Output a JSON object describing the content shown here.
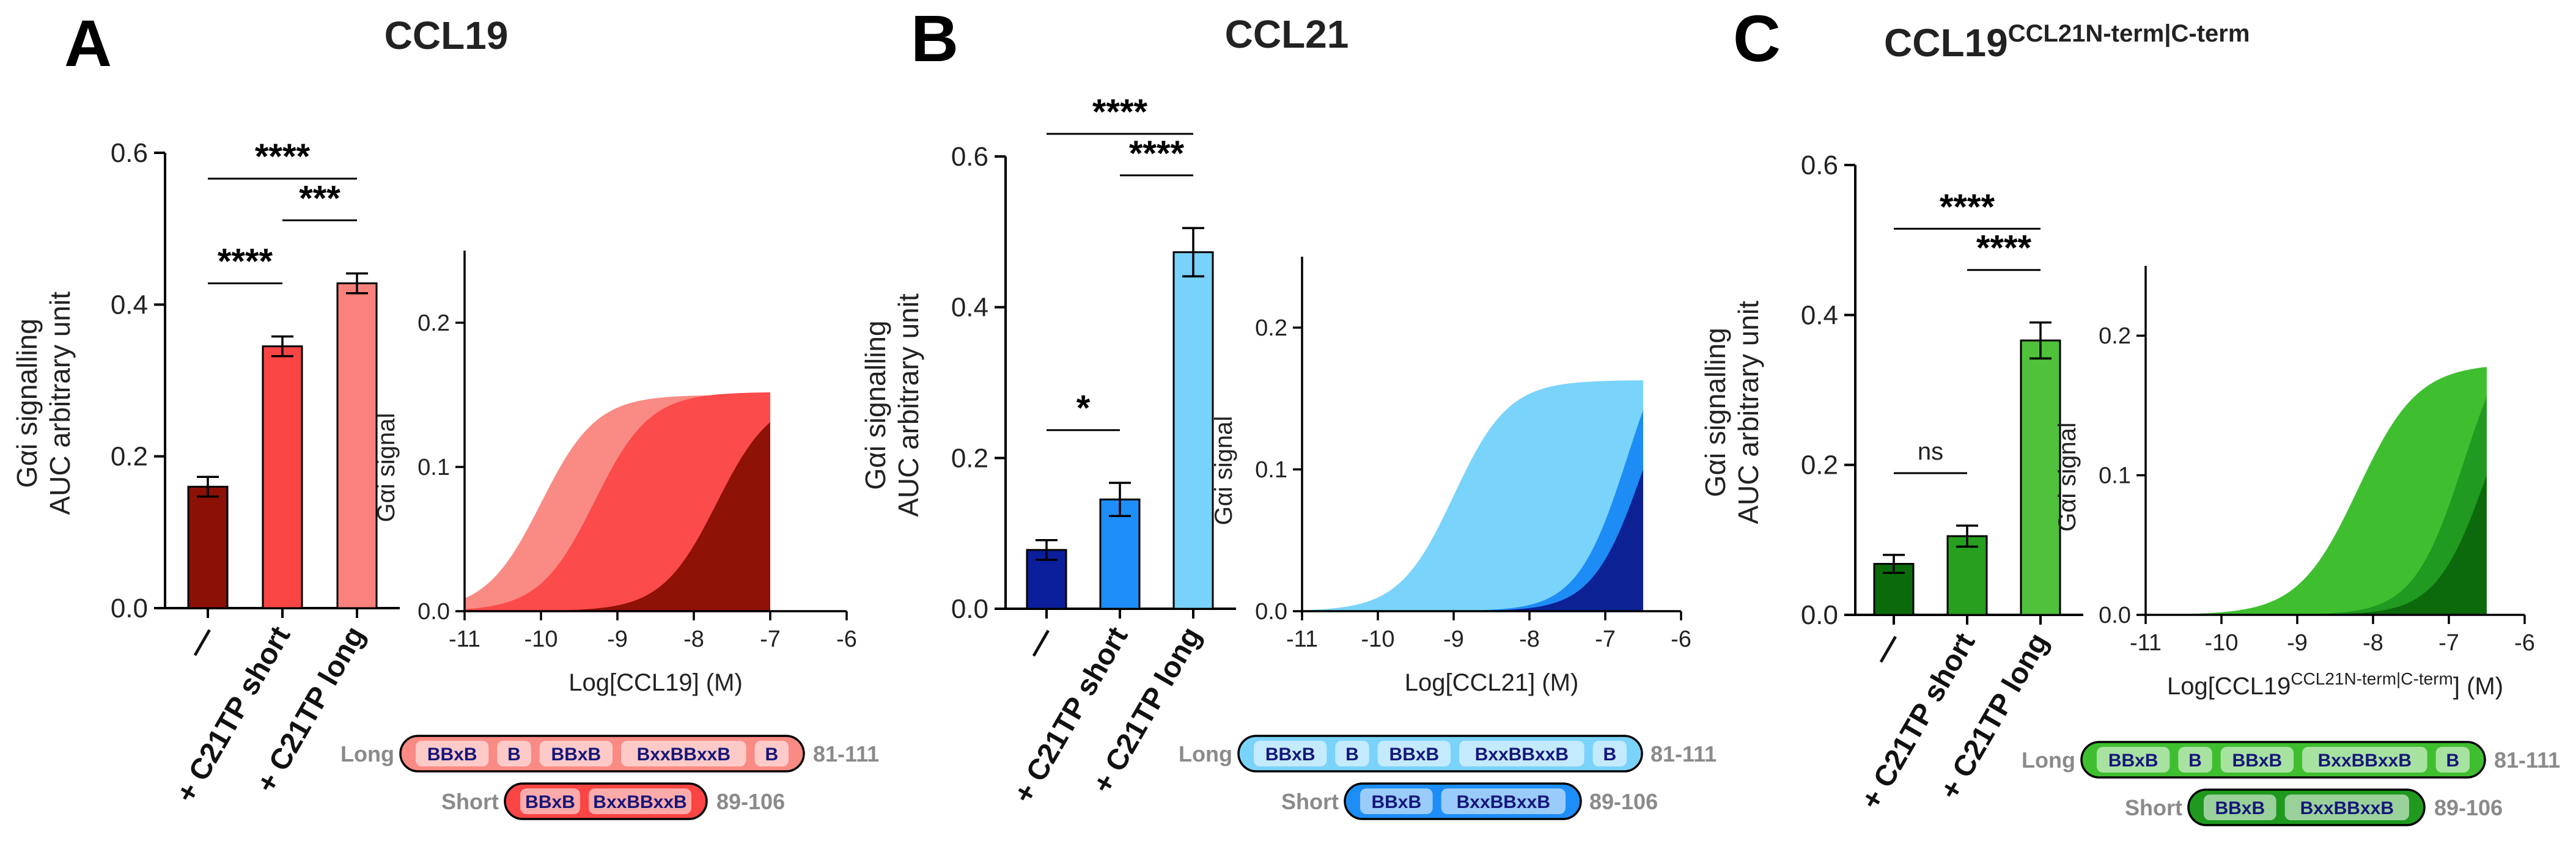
{
  "chart_data": [
    {
      "panel": "A",
      "title": "CCL19",
      "bar_chart": {
        "type": "bar",
        "ylabel_line1": "Gαi signalling",
        "ylabel_line2": "AUC arbitrary unit",
        "ylim": [
          0,
          0.6
        ],
        "yticks": [
          "0.0",
          "0.2",
          "0.4",
          "0.6"
        ],
        "categories": [
          "—",
          "+ C21TP short",
          "+ C21TP long"
        ],
        "values": [
          0.16,
          0.345,
          0.428
        ],
        "errors": [
          0.013,
          0.013,
          0.013
        ],
        "colors": [
          "#8b1106",
          "#fa4545",
          "#fb817c"
        ],
        "comparisons": [
          {
            "from": 0,
            "to": 1,
            "label": "****"
          },
          {
            "from": 1,
            "to": 2,
            "label": "***"
          },
          {
            "from": 0,
            "to": 2,
            "label": "****"
          }
        ]
      },
      "curve_chart": {
        "type": "area",
        "xlabel": "Log[CCL19] (M)",
        "ylabel": "Gαi signal",
        "xlim": [
          -11,
          -6
        ],
        "ylim": [
          0,
          0.25
        ],
        "xticks": [
          "-11",
          "-10",
          "-9",
          "-8",
          "-7",
          "-6"
        ],
        "yticks": [
          "0.0",
          "0.1",
          "0.2"
        ],
        "x_end": -7,
        "series": [
          {
            "name": "+ C21TP long",
            "top": 0.15,
            "ec50": -10.0,
            "hill": 1.2,
            "color": "#fa8a84"
          },
          {
            "name": "+ C21TP short",
            "top": 0.152,
            "ec50": -9.3,
            "hill": 1.2,
            "color": "#fb4b4b"
          },
          {
            "name": "—",
            "top": 0.15,
            "ec50": -7.7,
            "hill": 1.2,
            "color": "#8e1206"
          }
        ]
      },
      "peptides": [
        {
          "name": "Long",
          "range": "81-111",
          "color": "#fa8a84",
          "segments": [
            "BBxB",
            "B",
            "BBxB",
            "BxxBBxxB",
            "B"
          ]
        },
        {
          "name": "Short",
          "range": "89-106",
          "color": "#fb4444",
          "segments": [
            "BBxB",
            "BxxBBxxB"
          ]
        }
      ]
    },
    {
      "panel": "B",
      "title": "CCL21",
      "bar_chart": {
        "type": "bar",
        "ylabel_line1": "Gαi signalling",
        "ylabel_line2": "AUC arbitrary unit",
        "ylim": [
          0,
          0.6
        ],
        "yticks": [
          "0.0",
          "0.2",
          "0.4",
          "0.6"
        ],
        "categories": [
          "—",
          "+ C21TP short",
          "+ C21TP long"
        ],
        "values": [
          0.078,
          0.145,
          0.473
        ],
        "errors": [
          0.013,
          0.022,
          0.032
        ],
        "colors": [
          "#0b1f9c",
          "#1d8ef7",
          "#78d2fb"
        ],
        "comparisons": [
          {
            "from": 0,
            "to": 1,
            "label": "*"
          },
          {
            "from": 1,
            "to": 2,
            "label": "****"
          },
          {
            "from": 0,
            "to": 2,
            "label": "****"
          }
        ]
      },
      "curve_chart": {
        "type": "area",
        "xlabel": "Log[CCL21] (M)",
        "ylabel": "Gαi signal",
        "xlim": [
          -11,
          -6
        ],
        "ylim": [
          0,
          0.25
        ],
        "xticks": [
          "-11",
          "-10",
          "-9",
          "-8",
          "-7",
          "-6"
        ],
        "yticks": [
          "0.0",
          "0.1",
          "0.2"
        ],
        "x_end": -6.5,
        "series": [
          {
            "name": "+ C21TP long",
            "top": 0.163,
            "ec50": -9.0,
            "hill": 1.2,
            "color": "#7ad3fb"
          },
          {
            "name": "+ C21TP short",
            "top": 0.22,
            "ec50": -6.7,
            "hill": 1.3,
            "color": "#1d8cf5"
          },
          {
            "name": "—",
            "top": 0.2,
            "ec50": -6.5,
            "hill": 1.3,
            "color": "#0c2194"
          }
        ]
      },
      "peptides": [
        {
          "name": "Long",
          "range": "81-111",
          "color": "#7ad3fb",
          "segments": [
            "BBxB",
            "B",
            "BBxB",
            "BxxBBxxB",
            "B"
          ]
        },
        {
          "name": "Short",
          "range": "89-106",
          "color": "#1d8ef7",
          "segments": [
            "BBxB",
            "BxxBBxxB"
          ]
        }
      ]
    },
    {
      "panel": "C",
      "title": "CCL19",
      "title_superscript": "CCL21N-term|C-term",
      "bar_chart": {
        "type": "bar",
        "ylabel_line1": "Gαi signalling",
        "ylabel_line2": "AUC arbitrary unit",
        "ylim": [
          0,
          0.6
        ],
        "yticks": [
          "0.0",
          "0.2",
          "0.4",
          "0.6"
        ],
        "categories": [
          "—",
          "+ C21TP short",
          "+ C21TP long"
        ],
        "values": [
          0.068,
          0.105,
          0.366
        ],
        "errors": [
          0.012,
          0.014,
          0.024
        ],
        "colors": [
          "#0b6b0b",
          "#279f1f",
          "#4fc13a"
        ],
        "comparisons": [
          {
            "from": 0,
            "to": 1,
            "label": "ns"
          },
          {
            "from": 1,
            "to": 2,
            "label": "****"
          },
          {
            "from": 0,
            "to": 2,
            "label": "****"
          }
        ]
      },
      "curve_chart": {
        "type": "area",
        "xlabel": "Log[CCL19",
        "xlabel_superscript": "CCL21N-term|C-term",
        "xlabel_suffix": "] (M)",
        "ylabel": "Gαi signal",
        "xlim": [
          -11,
          -6
        ],
        "ylim": [
          0,
          0.25
        ],
        "xticks": [
          "-11",
          "-10",
          "-9",
          "-8",
          "-7",
          "-6"
        ],
        "yticks": [
          "0.0",
          "0.1",
          "0.2"
        ],
        "x_end": -6.5,
        "series": [
          {
            "name": "+ C21TP long",
            "top": 0.18,
            "ec50": -8.2,
            "hill": 1.1,
            "color": "#3fbf30"
          },
          {
            "name": "+ C21TP short",
            "top": 0.22,
            "ec50": -6.8,
            "hill": 1.3,
            "color": "#209a20"
          },
          {
            "name": "—",
            "top": 0.2,
            "ec50": -6.5,
            "hill": 1.3,
            "color": "#0c6a0c"
          }
        ]
      },
      "peptides": [
        {
          "name": "Long",
          "range": "81-111",
          "color": "#3fbf30",
          "segments": [
            "BBxB",
            "B",
            "BBxB",
            "BxxBBxxB",
            "B"
          ]
        },
        {
          "name": "Short",
          "range": "89-106",
          "color": "#1f9a1f",
          "segments": [
            "BBxB",
            "BxxBBxxB"
          ]
        }
      ]
    }
  ]
}
